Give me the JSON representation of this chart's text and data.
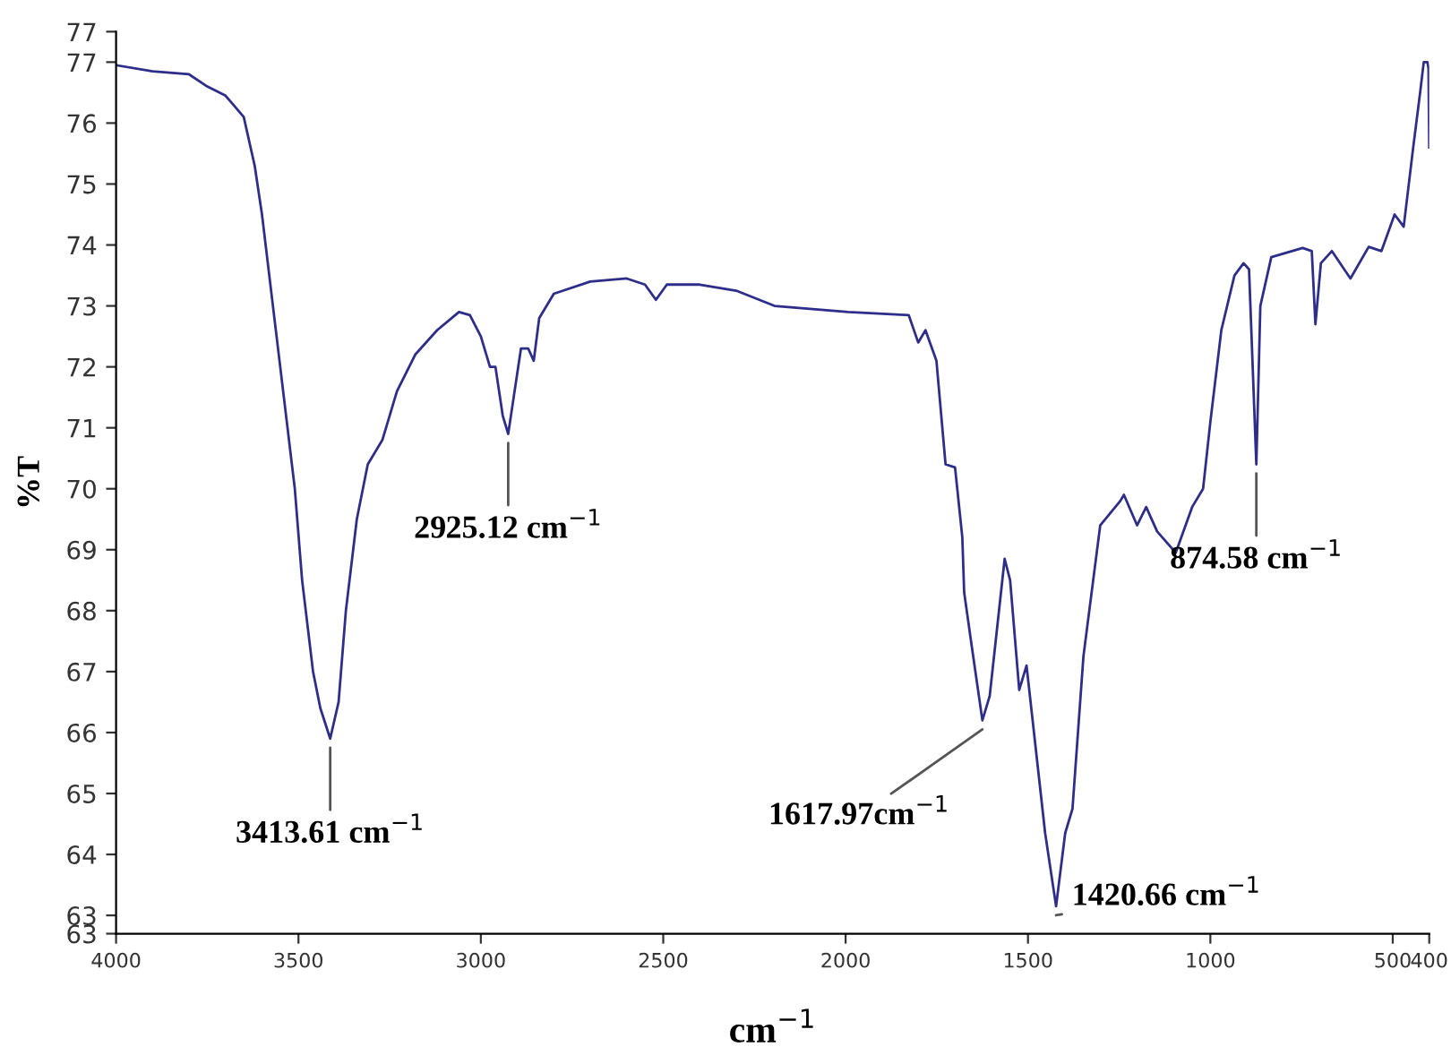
{
  "chart_data": {
    "type": "line",
    "xlabel": "cm$^{−1}$",
    "ylabel": "%T",
    "xlim": [
      4000,
      400
    ],
    "xticks": [
      4000,
      3500,
      3000,
      2500,
      2000,
      1500,
      1000,
      500,
      400
    ],
    "ylim": [
      62.7,
      77.5
    ],
    "yticks": [
      {
        "value": 62.7,
        "label": "63"
      },
      63,
      64,
      65,
      66,
      67,
      68,
      69,
      70,
      71,
      72,
      73,
      74,
      75,
      76,
      77,
      {
        "value": 77.5,
        "label": "77"
      }
    ],
    "grid": false,
    "legend": false,
    "marker": "none",
    "line_style": "solid",
    "series": [
      {
        "color": "#2e2e8a",
        "x": [
          4000,
          3900,
          3800,
          3750,
          3700,
          3650,
          3620,
          3600,
          3570,
          3540,
          3510,
          3490,
          3460,
          3440,
          3413,
          3390,
          3370,
          3340,
          3310,
          3270,
          3230,
          3180,
          3120,
          3060,
          3030,
          3000,
          2975,
          2960,
          2940,
          2925,
          2910,
          2890,
          2870,
          2855,
          2840,
          2800,
          2700,
          2600,
          2550,
          2520,
          2490,
          2400,
          2300,
          2195,
          1993,
          1827,
          1801,
          1781,
          1751,
          1726,
          1700,
          1680,
          1675,
          1655,
          1625,
          1605,
          1564,
          1549,
          1524,
          1504,
          1453,
          1423,
          1398,
          1378,
          1348,
          1302,
          1247,
          1237,
          1201,
          1176,
          1146,
          1095,
          1050,
          1020,
          1000,
          970,
          934,
          909,
          894,
          874,
          863,
          833,
          747,
          722,
          712,
          697,
          667,
          616,
          566,
          531,
          495,
          470,
          445,
          425,
          415,
          405,
          402,
          400
        ],
        "values": [
          76.95,
          76.85,
          76.8,
          76.6,
          76.45,
          76.1,
          75.3,
          74.5,
          73,
          71.5,
          70,
          68.5,
          67,
          66.4,
          65.9,
          66.5,
          68,
          69.5,
          70.4,
          70.8,
          71.6,
          72.2,
          72.6,
          72.9,
          72.85,
          72.5,
          72.0,
          72.0,
          71.2,
          70.9,
          71.5,
          72.3,
          72.3,
          72.1,
          72.8,
          73.2,
          73.4,
          73.45,
          73.35,
          73.1,
          73.35,
          73.35,
          73.25,
          73.0,
          72.9,
          72.85,
          72.4,
          72.6,
          72.1,
          70.4,
          70.35,
          69.2,
          68.3,
          67.45,
          66.2,
          66.6,
          68.85,
          68.5,
          66.7,
          67.1,
          64.35,
          63.15,
          64.35,
          64.75,
          67.25,
          69.4,
          69.8,
          69.9,
          69.4,
          69.7,
          69.3,
          68.95,
          69.7,
          70.0,
          71.1,
          72.6,
          73.5,
          73.7,
          73.6,
          70.4,
          73.0,
          73.8,
          73.95,
          73.9,
          72.7,
          73.7,
          73.9,
          73.45,
          73.97,
          73.9,
          74.5,
          74.3,
          75.55,
          76.5,
          77.0,
          77.0,
          76.9,
          75.6
        ]
      }
    ],
    "annotations": [
      {
        "text": "3413.61 cm$^{−1}$",
        "x": 3413,
        "y": 65.9
      },
      {
        "text": "2925.12 cm$^{−1}$",
        "x": 2925,
        "y": 70.9
      },
      {
        "text": "1617.97cm$^{−1}$",
        "x": 1625,
        "y": 66.2
      },
      {
        "text": "1420.66 cm$^{−1}$",
        "x": 1423,
        "y": 63.15
      },
      {
        "text": "874.58 cm$^{−1}$",
        "x": 874,
        "y": 70.4
      }
    ]
  }
}
